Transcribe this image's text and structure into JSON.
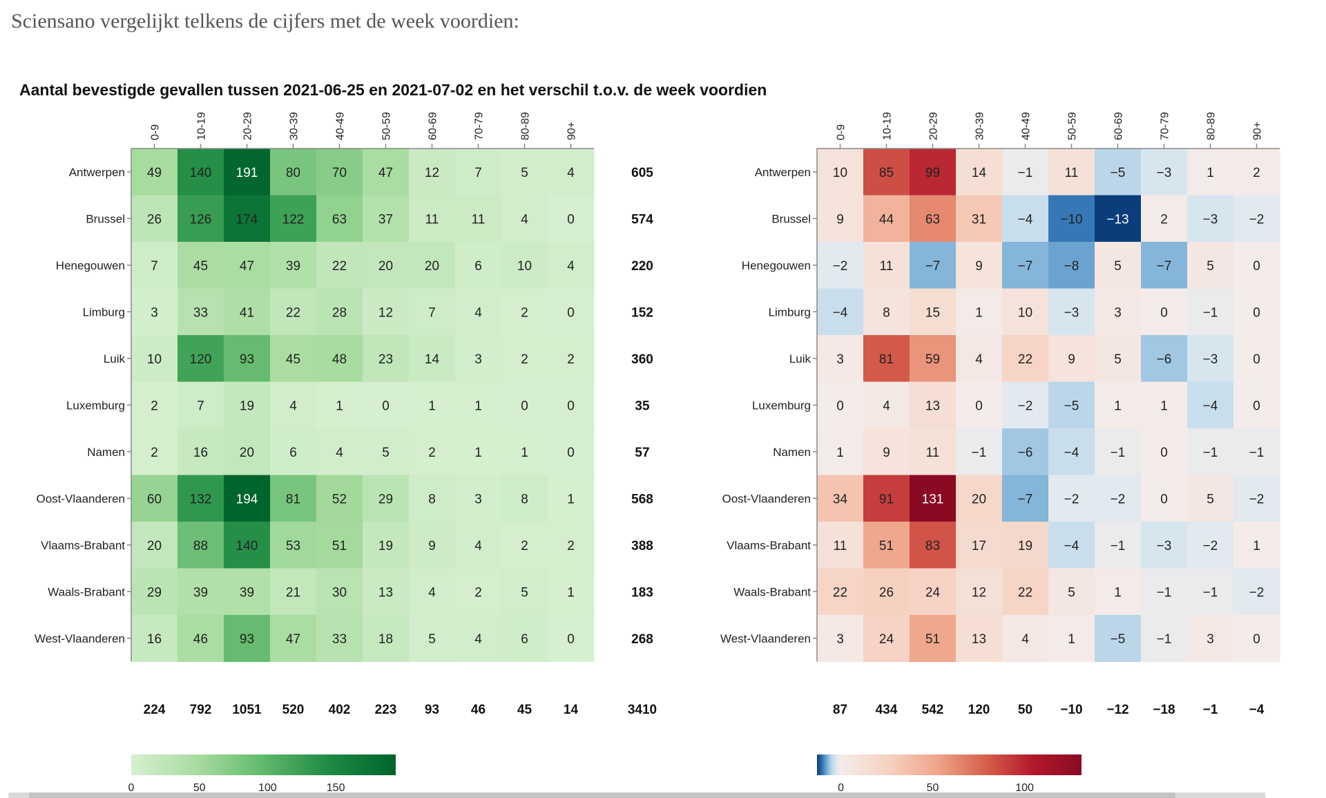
{
  "intro_text": "Sciensano vergelijkt telkens de cijfers met de week voordien:",
  "chart_data": [
    {
      "type": "heatmap",
      "title": "Aantal bevestigde gevallen tussen 2021-06-25 en 2021-07-02 en het verschil t.o.v. de week voordien",
      "subtitle": "",
      "xlabel": "",
      "ylabel": "",
      "x": [
        "0-9",
        "10-19",
        "20-29",
        "30-39",
        "40-49",
        "50-59",
        "60-69",
        "70-79",
        "80-89",
        "90+"
      ],
      "y": [
        "Antwerpen",
        "Brussel",
        "Henegouwen",
        "Limburg",
        "Luik",
        "Luxemburg",
        "Namen",
        "Oost-Vlaanderen",
        "Vlaams-Brabant",
        "Waals-Brabant",
        "West-Vlaanderen"
      ],
      "values": [
        [
          49,
          140,
          191,
          80,
          70,
          47,
          12,
          7,
          5,
          4
        ],
        [
          26,
          126,
          174,
          122,
          63,
          37,
          11,
          11,
          4,
          0
        ],
        [
          7,
          45,
          47,
          39,
          22,
          20,
          20,
          6,
          10,
          4
        ],
        [
          3,
          33,
          41,
          22,
          28,
          12,
          7,
          4,
          2,
          0
        ],
        [
          10,
          120,
          93,
          45,
          48,
          23,
          14,
          3,
          2,
          2
        ],
        [
          2,
          7,
          19,
          4,
          1,
          0,
          1,
          1,
          0,
          0
        ],
        [
          2,
          16,
          20,
          6,
          4,
          5,
          2,
          1,
          1,
          0
        ],
        [
          60,
          132,
          194,
          81,
          52,
          29,
          8,
          3,
          8,
          1
        ],
        [
          20,
          88,
          140,
          53,
          51,
          19,
          9,
          4,
          2,
          2
        ],
        [
          29,
          39,
          39,
          21,
          30,
          13,
          4,
          2,
          5,
          1
        ],
        [
          16,
          46,
          93,
          47,
          33,
          18,
          5,
          4,
          6,
          0
        ]
      ],
      "row_totals": [
        605,
        574,
        220,
        152,
        360,
        35,
        57,
        568,
        388,
        183,
        268
      ],
      "column_totals": [
        224,
        792,
        1051,
        520,
        402,
        223,
        93,
        46,
        45,
        14
      ],
      "grand_total": 3410,
      "color_scale": {
        "type": "sequential",
        "colors": [
          "#d6efd0",
          "#a8dc9f",
          "#5fb96b",
          "#1e8a43",
          "#00642d"
        ],
        "domain": [
          0,
          194
        ],
        "ticks": [
          0,
          50,
          100,
          150
        ]
      }
    },
    {
      "type": "heatmap",
      "title": "",
      "x": [
        "0-9",
        "10-19",
        "20-29",
        "30-39",
        "40-49",
        "50-59",
        "60-69",
        "70-79",
        "80-89",
        "90+"
      ],
      "y": [
        "Antwerpen",
        "Brussel",
        "Henegouwen",
        "Limburg",
        "Luik",
        "Luxemburg",
        "Namen",
        "Oost-Vlaanderen",
        "Vlaams-Brabant",
        "Waals-Brabant",
        "West-Vlaanderen"
      ],
      "values": [
        [
          10,
          85,
          99,
          14,
          -1,
          11,
          -5,
          -3,
          1,
          2
        ],
        [
          9,
          44,
          63,
          31,
          -4,
          -10,
          -13,
          2,
          -3,
          -2
        ],
        [
          -2,
          11,
          -7,
          9,
          -7,
          -8,
          5,
          -7,
          5,
          0
        ],
        [
          -4,
          8,
          15,
          1,
          10,
          -3,
          3,
          0,
          -1,
          0
        ],
        [
          3,
          81,
          59,
          4,
          22,
          9,
          5,
          -6,
          -3,
          0
        ],
        [
          0,
          4,
          13,
          0,
          -2,
          -5,
          1,
          1,
          -4,
          0
        ],
        [
          1,
          9,
          11,
          -1,
          -6,
          -4,
          -1,
          0,
          -1,
          -1
        ],
        [
          34,
          91,
          131,
          20,
          -7,
          -2,
          -2,
          0,
          5,
          -2
        ],
        [
          11,
          51,
          83,
          17,
          19,
          -4,
          -1,
          -3,
          -2,
          1
        ],
        [
          22,
          26,
          24,
          12,
          22,
          5,
          1,
          -1,
          -1,
          -2
        ],
        [
          3,
          24,
          51,
          13,
          4,
          1,
          -5,
          -1,
          3,
          0
        ]
      ],
      "column_totals": [
        87,
        434,
        542,
        120,
        50,
        -10,
        -12,
        -18,
        -1,
        -4
      ],
      "color_scale": {
        "type": "diverging",
        "negative_colors": [
          "#f4ecea",
          "#dde8f0",
          "#b8d5e8",
          "#6fa7d3",
          "#2c6fb0",
          "#0a3d79"
        ],
        "positive_colors": [
          "#f4ecea",
          "#f6d1c0",
          "#efa58a",
          "#d6604d",
          "#b2182b",
          "#8a0a24"
        ],
        "domain": [
          -13,
          131
        ],
        "ticks": [
          0,
          50,
          100
        ]
      }
    }
  ]
}
